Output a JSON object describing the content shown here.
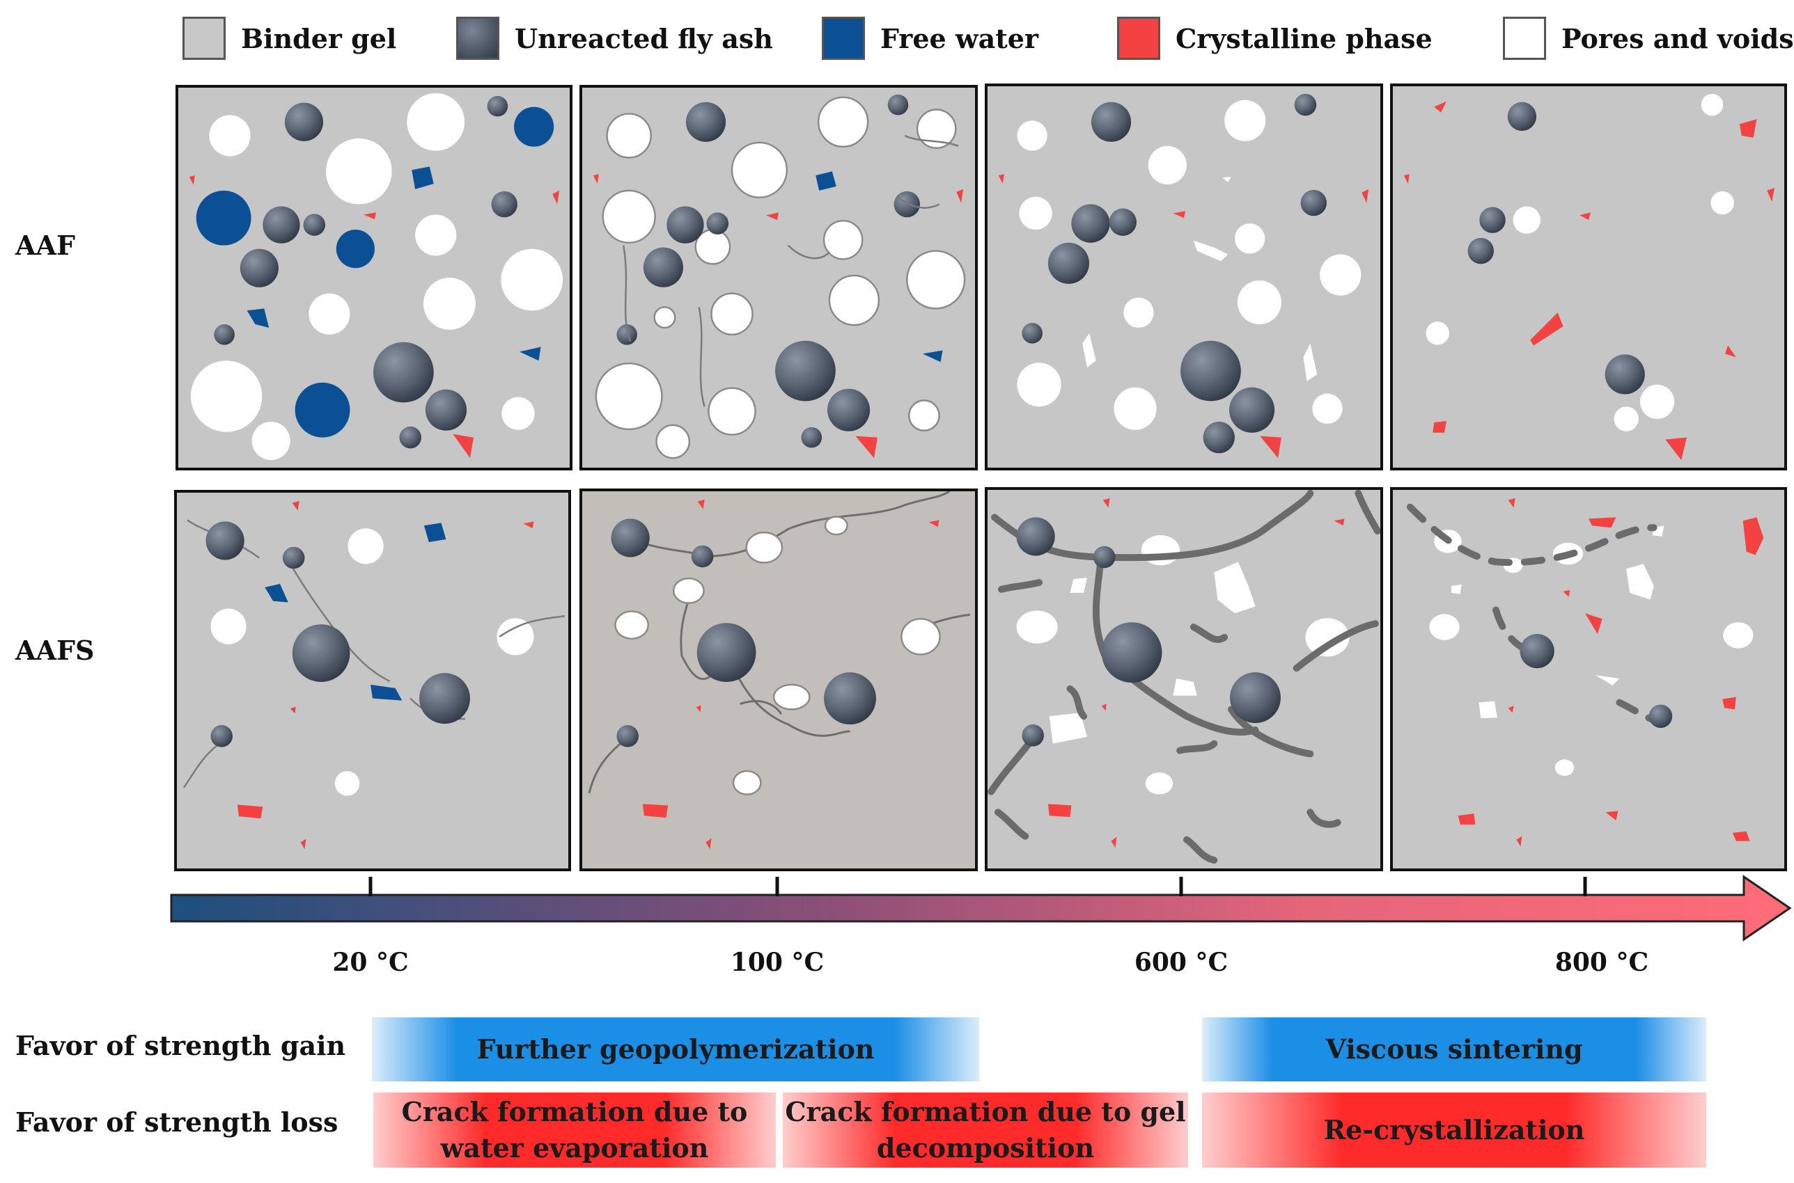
{
  "legend": [
    {
      "label": "Binder gel",
      "color": "#c8c8c8",
      "icon": "binder-gel-swatch"
    },
    {
      "label": "Unreacted fly ash",
      "color": "#3f4a5a",
      "icon": "fly-ash-swatch"
    },
    {
      "label": "Free water",
      "color": "#0b4f95",
      "icon": "free-water-swatch"
    },
    {
      "label": "Crystalline phase",
      "color": "#f44242",
      "icon": "crystalline-swatch"
    },
    {
      "label": "Pores and voids",
      "color": "#ffffff",
      "icon": "pores-swatch"
    }
  ],
  "rows": {
    "aaf": "AAF",
    "aafs": "AAFS"
  },
  "temperatures": [
    "20 °C",
    "100 °C",
    "600 °C",
    "800 °C"
  ],
  "favor": {
    "gain_label": "Favor of strength gain",
    "loss_label": "Favor of strength loss",
    "gain": [
      "Further geopolymerization",
      "Viscous sintering"
    ],
    "loss": [
      "Crack formation due to water evaporation",
      "Crack formation due to gel decomposition",
      "Re-crystallization"
    ]
  },
  "colors": {
    "binder": "#c6c6c6",
    "binder_aafs_100": "#c2beba",
    "fly_ash": "#4a5463",
    "water": "#0b4f95",
    "crystal": "#f44242",
    "pore": "#ffffff",
    "axis_start": "#1d4f7d",
    "axis_end": "#ff6c78"
  }
}
